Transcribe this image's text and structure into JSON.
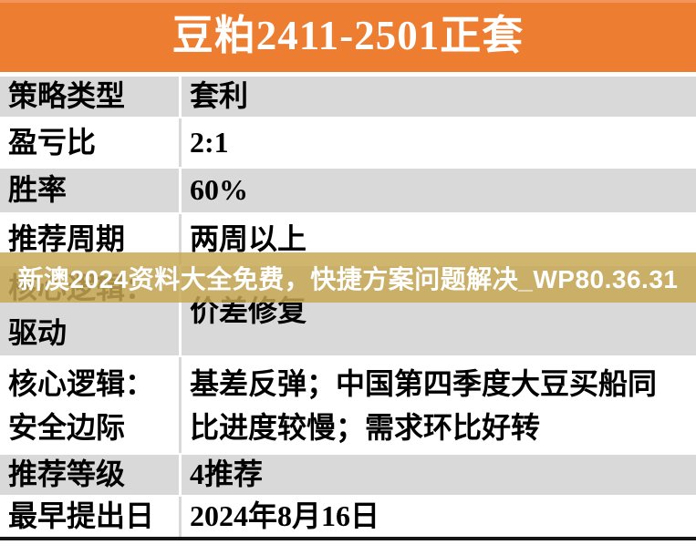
{
  "header": {
    "title": "豆粕2411-2501正套"
  },
  "watermark": {
    "text": "新澳2024资料大全免费，快捷方案问题解决_WP80.36.31"
  },
  "table": {
    "rows": [
      {
        "label": "策略类型",
        "value": "套利"
      },
      {
        "label": "盈亏比",
        "value": "2:1"
      },
      {
        "label": "胜率",
        "value": "60%"
      },
      {
        "label": "推荐周期",
        "value": "两周以上"
      },
      {
        "label": "核心逻辑：\n驱动",
        "value": "价差修复"
      },
      {
        "label": "核心逻辑：\n安全边际",
        "value": "基差反弹；中国第四季度大豆买船同\n比进度较慢；需求环比好转"
      },
      {
        "label": "推荐等级",
        "value": "4推荐"
      },
      {
        "label": "最早提出日",
        "value": "2024年8月16日"
      }
    ]
  },
  "colors": {
    "header_bg": "#ED7D31",
    "header_top_strip": "#F2955B",
    "header_text": "#FFFFFF",
    "row_alt_bg": "#D9D9D9",
    "row_bg": "#FFFFFF",
    "table_text": "#000000",
    "watermark_bg": "#C6A752",
    "watermark_text": "#FFFFFF",
    "bottom_rule": "#151515"
  }
}
